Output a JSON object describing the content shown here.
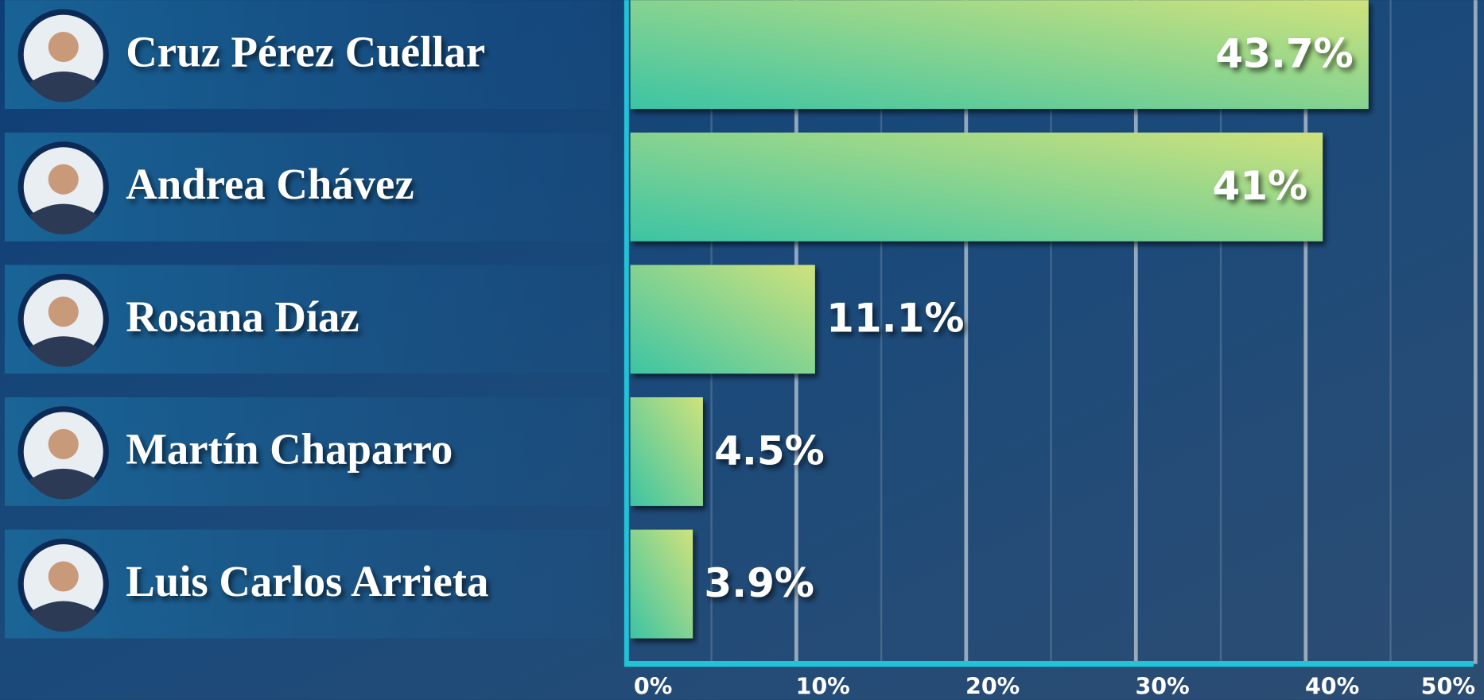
{
  "chart_data": {
    "type": "hbar",
    "categories": [
      "Cruz Pérez Cuéllar",
      "Andrea Chávez",
      "Rosana Díaz",
      "Martín Chaparro",
      "Luis Carlos Arrieta"
    ],
    "values": [
      43.7,
      41,
      11.1,
      4.5,
      3.9
    ],
    "value_labels": [
      "43.7%",
      "41%",
      "11.1%",
      "4.5%",
      "3.9%"
    ],
    "colors": [
      "#3cc4a4",
      "#cfe27c"
    ],
    "xlim": [
      0,
      50
    ],
    "xticks": [
      {
        "value": 0,
        "label": "0%"
      },
      {
        "value": 10,
        "label": "10%"
      },
      {
        "value": 20,
        "label": "20%"
      },
      {
        "value": 30,
        "label": "30%"
      },
      {
        "value": 40,
        "label": "40%"
      },
      {
        "value": 50,
        "label": "50%"
      }
    ],
    "xminor": [
      5,
      15,
      25,
      35,
      45
    ],
    "grid": true
  }
}
